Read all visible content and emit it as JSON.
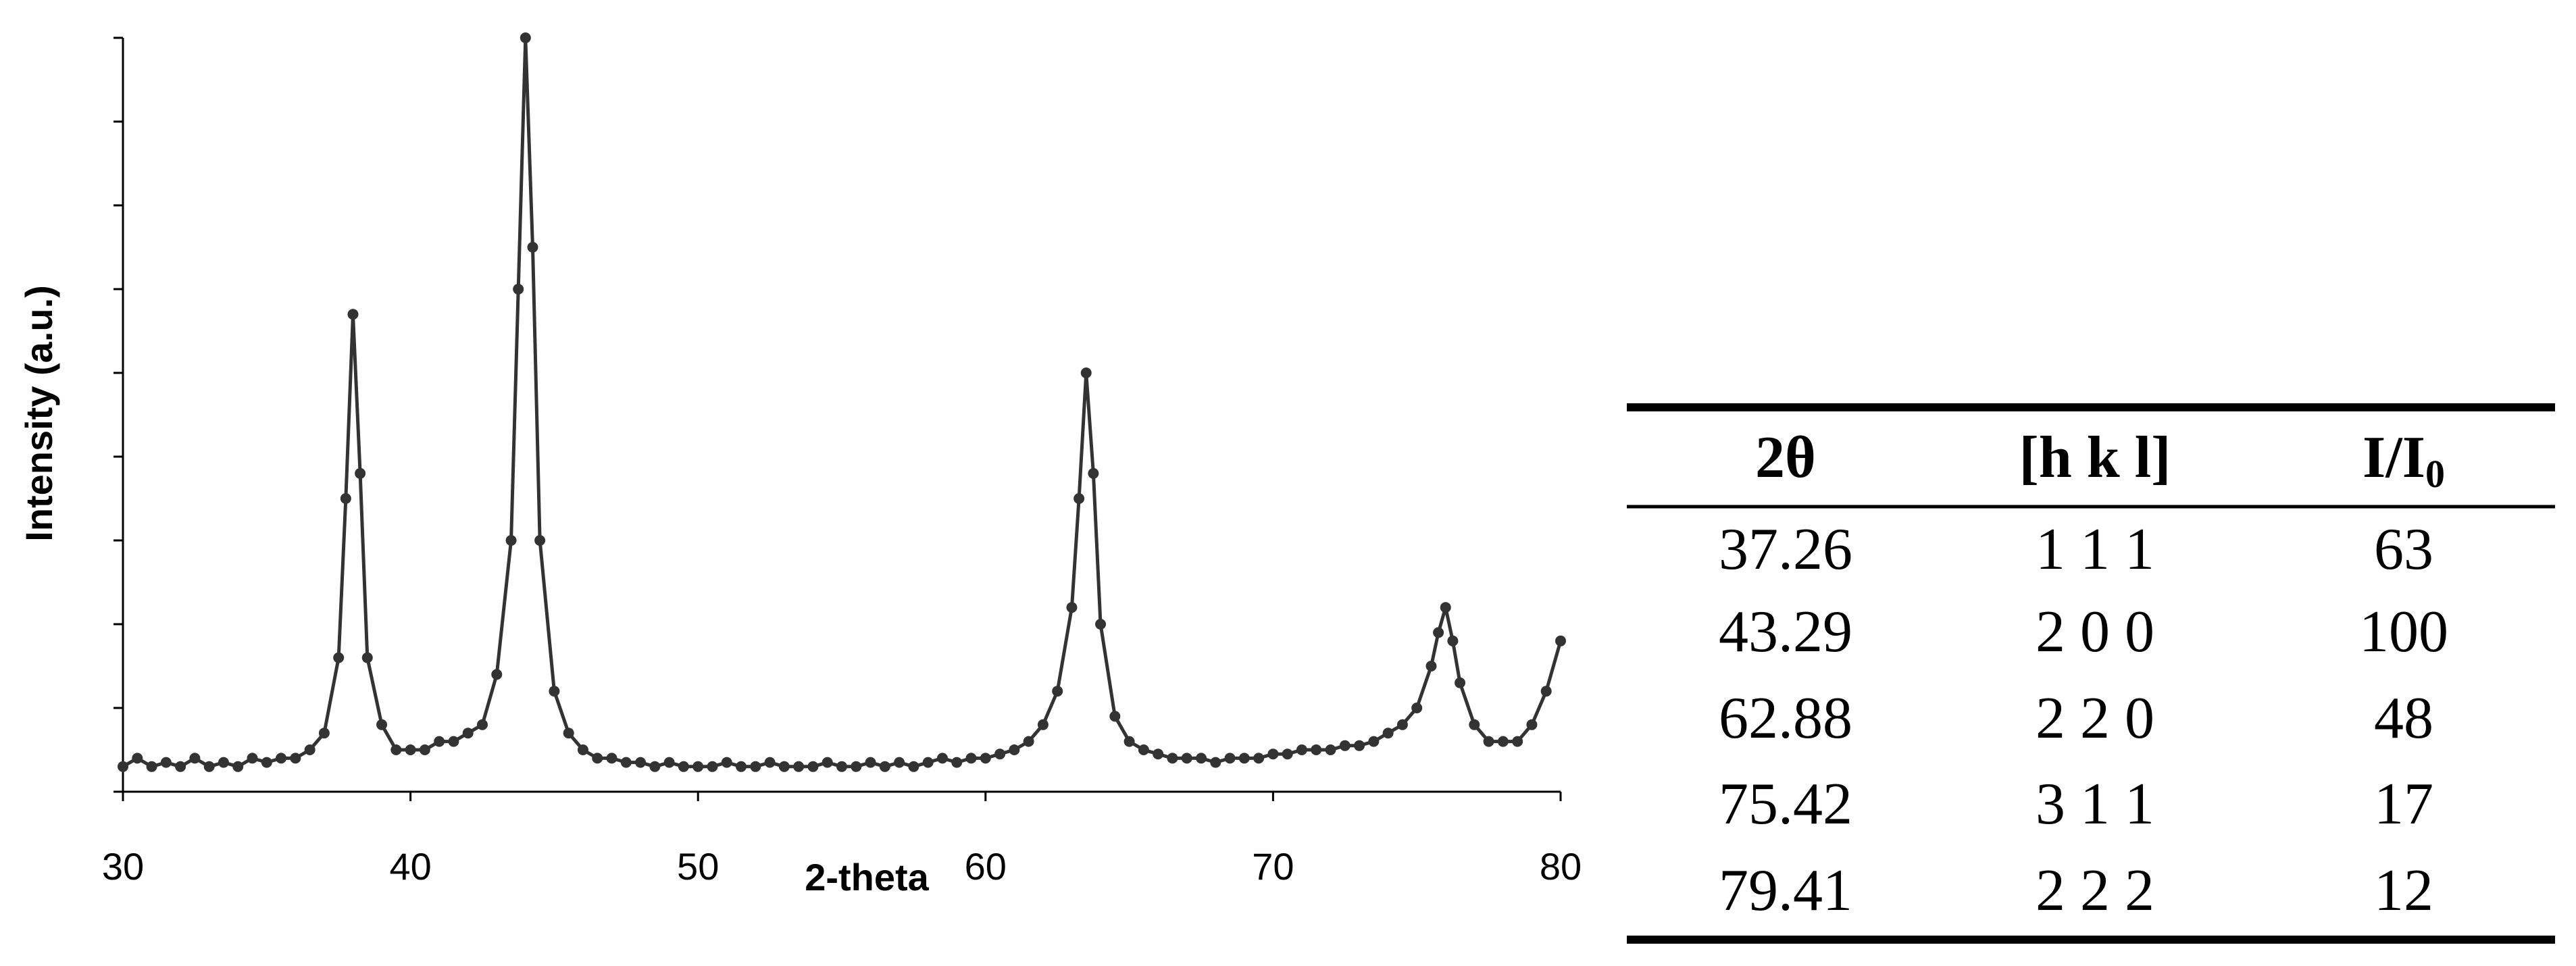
{
  "chart_data": {
    "type": "line",
    "x_label": "2-theta",
    "y_label": "Intensity (a.u.)",
    "xlim": [
      30,
      80
    ],
    "xticks": [
      30,
      40,
      50,
      60,
      70,
      80
    ],
    "ylim": [
      0,
      9
    ],
    "yticks": [
      0,
      1,
      2,
      3,
      4,
      5,
      6,
      7,
      8,
      9
    ],
    "markers": true,
    "x": [
      30,
      30.5,
      31,
      31.5,
      32,
      32.5,
      33,
      33.5,
      34,
      34.5,
      35,
      35.5,
      36,
      36.5,
      37,
      37.5,
      37.75,
      38,
      38.25,
      38.5,
      39,
      39.5,
      40,
      40.5,
      41,
      41.5,
      42,
      42.5,
      43,
      43.5,
      43.75,
      44,
      44.25,
      44.5,
      45,
      45.5,
      46,
      46.5,
      47,
      47.5,
      48,
      48.5,
      49,
      49.5,
      50,
      50.5,
      51,
      51.5,
      52,
      52.5,
      53,
      53.5,
      54,
      54.5,
      55,
      55.5,
      56,
      56.5,
      57,
      57.5,
      58,
      58.5,
      59,
      59.5,
      60,
      60.5,
      61,
      61.5,
      62,
      62.5,
      63,
      63.25,
      63.5,
      63.75,
      64,
      64.5,
      65,
      65.5,
      66,
      66.5,
      67,
      67.5,
      68,
      68.5,
      69,
      69.5,
      70,
      70.5,
      71,
      71.5,
      72,
      72.5,
      73,
      73.5,
      74,
      74.5,
      75,
      75.5,
      75.75,
      76,
      76.25,
      76.5,
      77,
      77.5,
      78,
      78.5,
      79,
      79.5,
      80
    ],
    "series": [
      {
        "color": "#333333",
        "values": [
          0.3,
          0.4,
          0.3,
          0.35,
          0.3,
          0.4,
          0.3,
          0.35,
          0.3,
          0.4,
          0.35,
          0.4,
          0.4,
          0.5,
          0.7,
          1.6,
          3.5,
          5.7,
          3.8,
          1.6,
          0.8,
          0.5,
          0.5,
          0.5,
          0.6,
          0.6,
          0.7,
          0.8,
          1.4,
          3.0,
          6.0,
          9.0,
          6.5,
          3.0,
          1.2,
          0.7,
          0.5,
          0.4,
          0.4,
          0.35,
          0.35,
          0.3,
          0.35,
          0.3,
          0.3,
          0.3,
          0.35,
          0.3,
          0.3,
          0.35,
          0.3,
          0.3,
          0.3,
          0.35,
          0.3,
          0.3,
          0.35,
          0.3,
          0.35,
          0.3,
          0.35,
          0.4,
          0.35,
          0.4,
          0.4,
          0.45,
          0.5,
          0.6,
          0.8,
          1.2,
          2.2,
          3.5,
          5.0,
          3.8,
          2.0,
          0.9,
          0.6,
          0.5,
          0.45,
          0.4,
          0.4,
          0.4,
          0.35,
          0.4,
          0.4,
          0.4,
          0.45,
          0.45,
          0.5,
          0.5,
          0.5,
          0.55,
          0.55,
          0.6,
          0.7,
          0.8,
          1.0,
          1.5,
          1.9,
          2.2,
          1.8,
          1.3,
          0.8,
          0.6,
          0.6,
          0.6,
          0.8,
          1.2,
          1.8
        ]
      }
    ]
  },
  "table": {
    "columns": [
      {
        "text": "2θ"
      },
      {
        "text": "[h k l]"
      },
      {
        "text": "I/I",
        "subscript": "0"
      }
    ],
    "rows": [
      [
        37.26,
        "1 1 1",
        63
      ],
      [
        43.29,
        "2 0 0",
        100
      ],
      [
        62.88,
        "2 2 0",
        48
      ],
      [
        75.42,
        "3 1 1",
        17
      ],
      [
        79.41,
        "2 2 2",
        12
      ]
    ]
  }
}
